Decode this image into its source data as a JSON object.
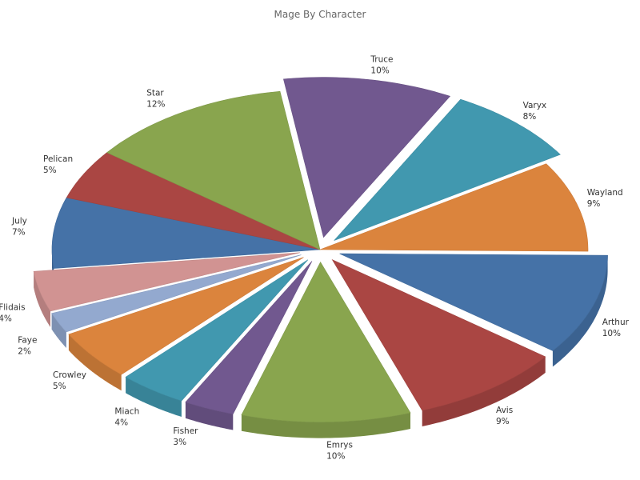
{
  "chart_data": {
    "type": "pie",
    "title": "Mage By Character",
    "legend": "none",
    "slices": [
      {
        "name": "Arthur",
        "pct": 10,
        "label": "10%",
        "color": "#4572A7",
        "explode": true
      },
      {
        "name": "Avis",
        "pct": 9,
        "label": "9%",
        "color": "#AA4643",
        "explode": true
      },
      {
        "name": "Emrys",
        "pct": 10,
        "label": "10%",
        "color": "#89A54E",
        "explode": true
      },
      {
        "name": "Fisher",
        "pct": 3,
        "label": "3%",
        "color": "#71588F",
        "explode": true
      },
      {
        "name": "Miach",
        "pct": 4,
        "label": "4%",
        "color": "#4198AF",
        "explode": true
      },
      {
        "name": "Crowley",
        "pct": 5,
        "label": "5%",
        "color": "#DB843D",
        "explode": true
      },
      {
        "name": "Faye",
        "pct": 2,
        "label": "2%",
        "color": "#93A9CF",
        "explode": true
      },
      {
        "name": "Flidais",
        "pct": 4,
        "label": "4%",
        "color": "#D19392",
        "explode": true
      },
      {
        "name": "July",
        "pct": 7,
        "label": "7%",
        "color": "#4572A7",
        "explode": false
      },
      {
        "name": "Pelican",
        "pct": 5,
        "label": "5%",
        "color": "#AA4643",
        "explode": false
      },
      {
        "name": "Star",
        "pct": 12,
        "label": "12%",
        "color": "#89A54E",
        "explode": false
      },
      {
        "name": "Truce",
        "pct": 10,
        "label": "10%",
        "color": "#71588F",
        "explode": true
      },
      {
        "name": "Varyx",
        "pct": 8,
        "label": "8%",
        "color": "#4198AF",
        "explode": true
      },
      {
        "name": "Wayland",
        "pct": 9,
        "label": "9%",
        "color": "#DB843D",
        "explode": false
      }
    ]
  }
}
